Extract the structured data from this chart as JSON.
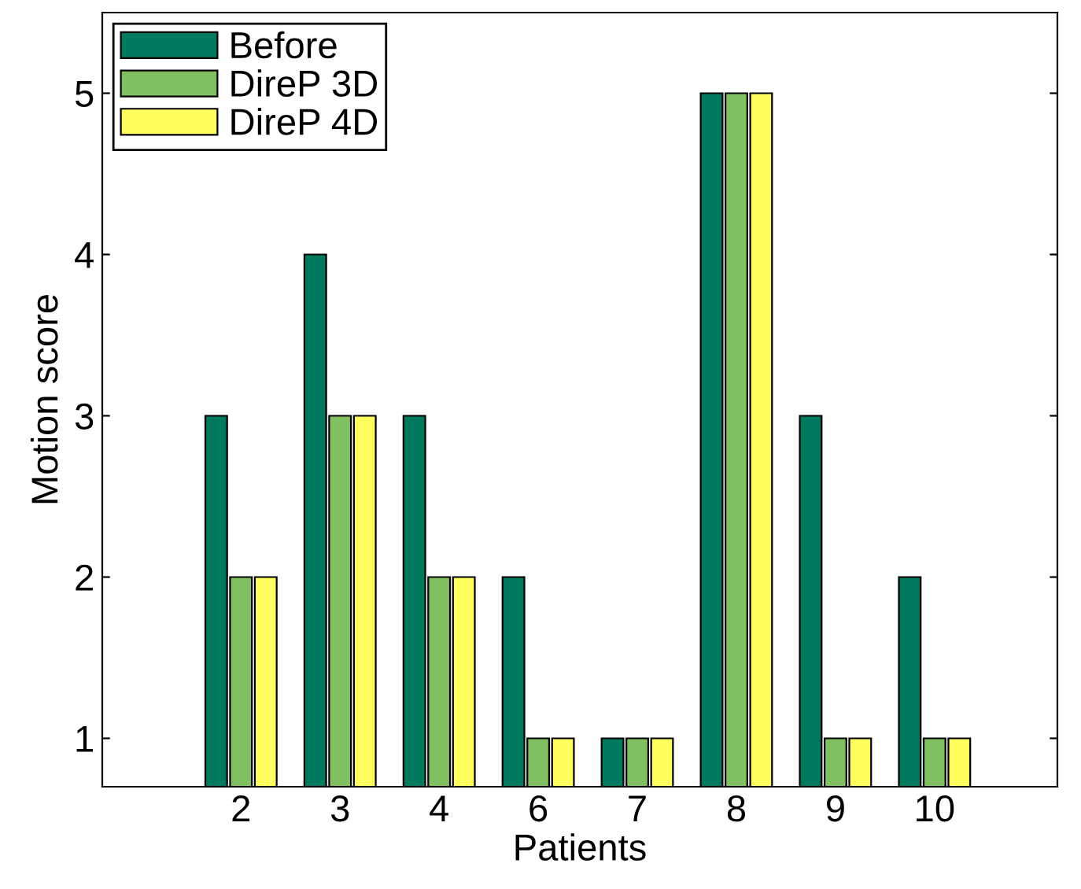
{
  "chart_data": {
    "type": "bar",
    "xlabel": "Patients",
    "ylabel": "Motion score",
    "categories": [
      "2",
      "3",
      "4",
      "6",
      "7",
      "8",
      "9",
      "10"
    ],
    "series": [
      {
        "name": "Before",
        "color": "#007a5e",
        "values": [
          3,
          4,
          3,
          2,
          1,
          5,
          3,
          2
        ]
      },
      {
        "name": "DireP 3D",
        "color": "#80c060",
        "values": [
          2,
          3,
          2,
          1,
          1,
          5,
          1,
          1
        ]
      },
      {
        "name": "DireP 4D",
        "color": "#ffff60",
        "values": [
          2,
          3,
          2,
          1,
          1,
          5,
          1,
          1
        ]
      }
    ],
    "ylim": [
      0.7,
      5.5
    ],
    "yticks": [
      1,
      2,
      3,
      4,
      5
    ],
    "grid": false,
    "legend": "top left"
  }
}
